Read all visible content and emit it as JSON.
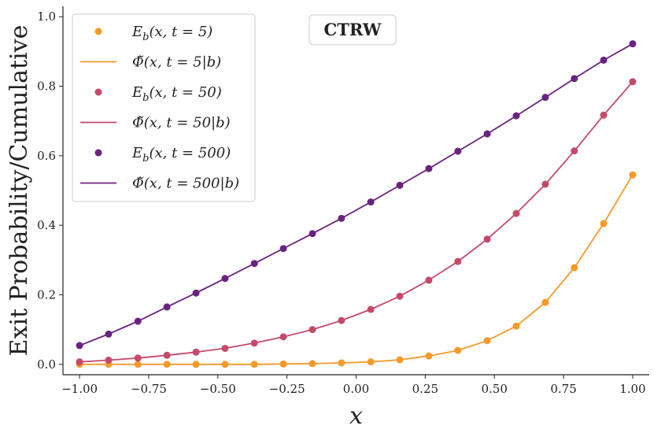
{
  "chart_data": {
    "type": "line",
    "title": "",
    "xlabel": "x",
    "ylabel": "Exit Probability/Cumulative",
    "xlim": [
      -1.06,
      1.06
    ],
    "ylim": [
      -0.03,
      1.03
    ],
    "xticks": [
      -1.0,
      -0.75,
      -0.5,
      -0.25,
      0.0,
      0.25,
      0.5,
      0.75,
      1.0
    ],
    "xtick_labels": [
      "−1.00",
      "−0.75",
      "−0.50",
      "−0.25",
      "0.00",
      "0.25",
      "0.50",
      "0.75",
      "1.00"
    ],
    "yticks": [
      0.0,
      0.2,
      0.4,
      0.6,
      0.8,
      1.0
    ],
    "ytick_labels": [
      "0.0",
      "0.2",
      "0.4",
      "0.6",
      "0.8",
      "1.0"
    ],
    "grid": false,
    "legend_position": "top-left",
    "annotation": "CTRW",
    "x": [
      -1.0,
      -0.895,
      -0.789,
      -0.684,
      -0.579,
      -0.474,
      -0.368,
      -0.263,
      -0.158,
      -0.053,
      0.053,
      0.158,
      0.263,
      0.368,
      0.474,
      0.579,
      0.684,
      0.789,
      0.895,
      1.0
    ],
    "series": [
      {
        "name": "t = 5",
        "color": "#f59a2a",
        "scatter_label": "E_b(x, t = 5)",
        "line_label": "Φ̃(x, t = 5|b)",
        "values": [
          0.0,
          0.0,
          0.0,
          0.0,
          0.0,
          0.0,
          0.0,
          0.001,
          0.002,
          0.004,
          0.007,
          0.013,
          0.024,
          0.04,
          0.068,
          0.11,
          0.178,
          0.278,
          0.405,
          0.545
        ]
      },
      {
        "name": "t = 50",
        "color": "#c44a6a",
        "scatter_label": "E_b(x, t = 50)",
        "line_label": "Φ̃(x, t = 50|b)",
        "values": [
          0.007,
          0.012,
          0.018,
          0.026,
          0.035,
          0.046,
          0.061,
          0.079,
          0.1,
          0.126,
          0.158,
          0.196,
          0.242,
          0.296,
          0.36,
          0.434,
          0.518,
          0.614,
          0.717,
          0.813
        ]
      },
      {
        "name": "t = 500",
        "color": "#6a2380",
        "scatter_label": "E_b(x, t = 500)",
        "line_label": "Φ̃(x, t = 500|b)",
        "values": [
          0.054,
          0.087,
          0.124,
          0.165,
          0.205,
          0.247,
          0.29,
          0.333,
          0.376,
          0.42,
          0.467,
          0.515,
          0.563,
          0.613,
          0.663,
          0.715,
          0.768,
          0.822,
          0.875,
          0.922
        ]
      }
    ]
  },
  "legend_entries": [
    {
      "kind": "marker",
      "series": 0,
      "sym": "E",
      "sub": "b",
      "args": "(x, t = 5)"
    },
    {
      "kind": "line",
      "series": 0,
      "sym": "Φ̃",
      "sub": "",
      "args": "(x, t = 5|b)"
    },
    {
      "kind": "marker",
      "series": 1,
      "sym": "E",
      "sub": "b",
      "args": "(x, t = 50)"
    },
    {
      "kind": "line",
      "series": 1,
      "sym": "Φ̃",
      "sub": "",
      "args": "(x, t = 50|b)"
    },
    {
      "kind": "marker",
      "series": 2,
      "sym": "E",
      "sub": "b",
      "args": "(x, t = 500)"
    },
    {
      "kind": "line",
      "series": 2,
      "sym": "Φ̃",
      "sub": "",
      "args": "(x, t = 500|b)"
    }
  ]
}
